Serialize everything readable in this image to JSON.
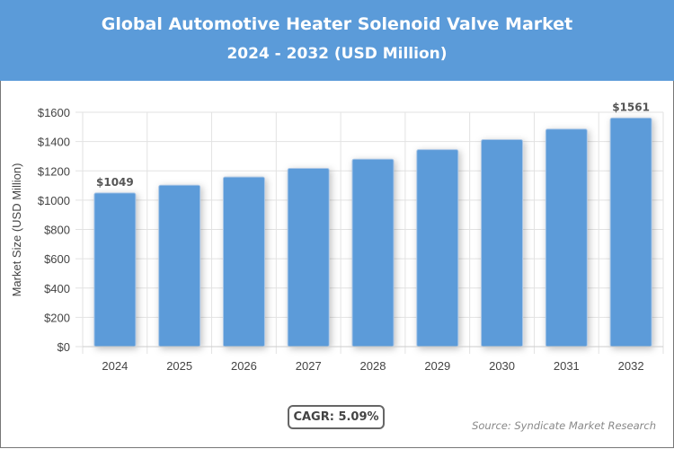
{
  "chart_data": {
    "type": "bar",
    "title": "Global Automotive Heater Solenoid Valve Market",
    "subtitle": "2024 - 2032 (USD Million)",
    "xlabel": "",
    "ylabel": "Market Size (USD Million)",
    "categories": [
      "2024",
      "2025",
      "2026",
      "2027",
      "2028",
      "2029",
      "2030",
      "2031",
      "2032"
    ],
    "values": [
      1049,
      1102,
      1158,
      1217,
      1280,
      1345,
      1413,
      1485,
      1561
    ],
    "data_labels": {
      "0": "$1049",
      "8": "$1561"
    },
    "ylim": [
      0,
      1600
    ],
    "yticks": [
      "$0",
      "$200",
      "$400",
      "$600",
      "$800",
      "$1000",
      "$1200",
      "$1400",
      "$1600"
    ],
    "grid": true,
    "bar_color": "#5b9bd9",
    "header_color": "#5b9bd9"
  },
  "cagr": "CAGR: 5.09%",
  "source": "Source: Syndicate Market Research"
}
